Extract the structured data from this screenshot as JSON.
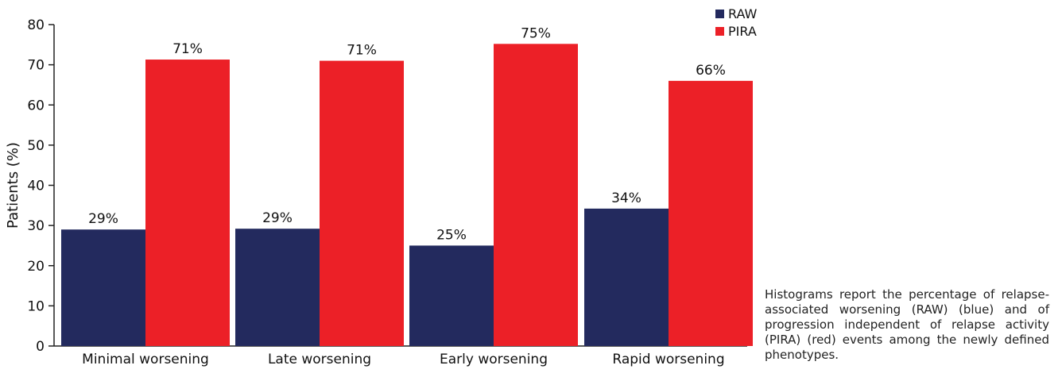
{
  "chart_data": {
    "type": "bar",
    "categories": [
      "Minimal worsening",
      "Late worsening",
      "Early worsening",
      "Rapid worsening"
    ],
    "series": [
      {
        "name": "RAW",
        "values": [
          29,
          29.2,
          25,
          34.2
        ],
        "labels": [
          "29%",
          "29%",
          "25%",
          "34%"
        ],
        "color": "#232a5e"
      },
      {
        "name": "PIRA",
        "values": [
          71.3,
          71,
          75.2,
          66
        ],
        "labels": [
          "71%",
          "71%",
          "75%",
          "66%"
        ],
        "color": "#ec2027"
      }
    ],
    "ylabel": "Patients (%)",
    "xlabel": "",
    "ylim": [
      0,
      80
    ],
    "yticks": [
      0,
      10,
      20,
      30,
      40,
      50,
      60,
      70,
      80
    ],
    "grid": false,
    "legend_position": "top-right"
  },
  "caption": "Histograms report the percentage of relapse-associated worsening (RAW) (blue) and of progression independent of relapse activity (PIRA) (red) events among the newly defined phenotypes."
}
